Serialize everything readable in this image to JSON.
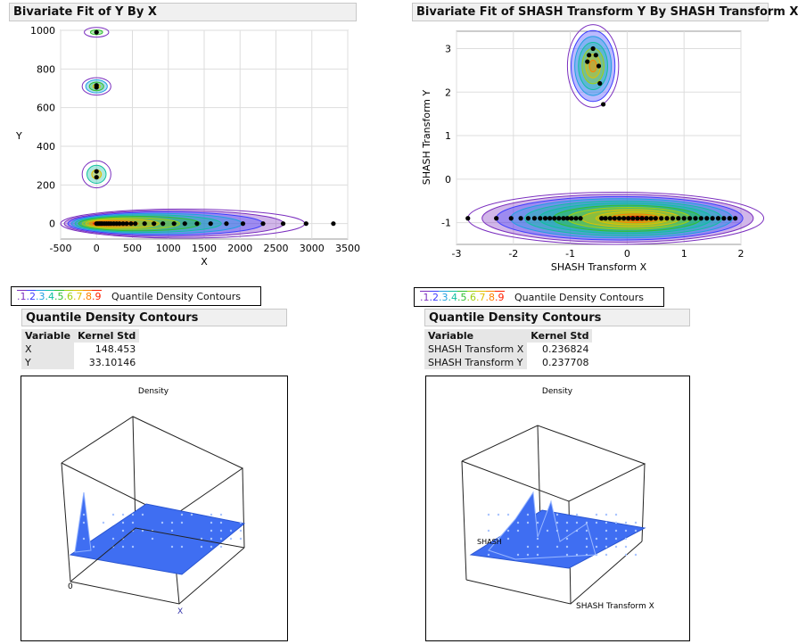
{
  "left": {
    "title": "Bivariate Fit of Y By X",
    "legend_levels": [
      ".1",
      ".2",
      ".3",
      ".4",
      ".5",
      ".6",
      ".7",
      ".8",
      ".9"
    ],
    "legend_label": "Quantile Density Contours",
    "table_title": "Quantile Density Contours",
    "table_headers": [
      "Variable",
      "Kernel Std"
    ],
    "table_rows": [
      [
        "X",
        "148.453"
      ],
      [
        "Y",
        "33.10146"
      ]
    ],
    "surface": {
      "title": "Density",
      "zero_label": "0",
      "x_label": "X"
    }
  },
  "right": {
    "title": "Bivariate Fit of SHASH Transform Y By SHASH Transform X",
    "legend_levels": [
      ".1",
      ".2",
      ".3",
      ".4",
      ".5",
      ".6",
      ".7",
      ".8",
      ".9"
    ],
    "legend_label": "Quantile Density Contours",
    "table_title": "Quantile Density Contours",
    "table_headers": [
      "Variable",
      "Kernel Std"
    ],
    "table_rows": [
      [
        "SHASH Transform X",
        "0.236824"
      ],
      [
        "SHASH Transform Y",
        "0.237708"
      ]
    ],
    "surface": {
      "title": "Density",
      "y_label": "SHASH",
      "x_label": "SHASH Transform X"
    }
  },
  "legend_colors": [
    "#7b2fbf",
    "#3d3dff",
    "#1fa0e0",
    "#10c0a0",
    "#30c030",
    "#a0d010",
    "#e0c000",
    "#ff8000",
    "#ff2000"
  ],
  "chart_data": [
    {
      "type": "scatter",
      "xlabel": "X",
      "ylabel": "Y",
      "xlim": [
        -500,
        3500
      ],
      "ylim": [
        -80,
        1000
      ],
      "xticks": [
        "-500",
        "0",
        "500",
        "1000",
        "1500",
        "2000",
        "2500",
        "3000",
        "3500"
      ],
      "yticks": [
        "0",
        "200",
        "400",
        "600",
        "800",
        "1000"
      ],
      "grid": true,
      "points": [
        [
          0,
          990
        ],
        [
          0,
          715
        ],
        [
          0,
          705
        ],
        [
          0,
          270
        ],
        [
          0,
          240
        ],
        [
          0,
          0
        ],
        [
          20,
          0
        ],
        [
          40,
          0
        ],
        [
          60,
          0
        ],
        [
          80,
          0
        ],
        [
          110,
          0
        ],
        [
          140,
          0
        ],
        [
          170,
          0
        ],
        [
          200,
          0
        ],
        [
          240,
          0
        ],
        [
          280,
          0
        ],
        [
          320,
          0
        ],
        [
          370,
          0
        ],
        [
          420,
          0
        ],
        [
          480,
          0
        ],
        [
          540,
          0
        ],
        [
          670,
          0
        ],
        [
          800,
          0
        ],
        [
          925,
          0
        ],
        [
          1080,
          0
        ],
        [
          1230,
          0
        ],
        [
          1400,
          0
        ],
        [
          1590,
          0
        ],
        [
          1810,
          0
        ],
        [
          2040,
          0
        ],
        [
          2320,
          0
        ],
        [
          2600,
          0
        ],
        [
          2920,
          0
        ],
        [
          3300,
          0
        ]
      ]
    },
    {
      "type": "scatter",
      "xlabel": "SHASH Transform X",
      "ylabel": "SHASH Transform Y",
      "xlim": [
        -3,
        2
      ],
      "ylim": [
        -1.5,
        3.4
      ],
      "xticks": [
        "-3",
        "-2",
        "-1",
        "0",
        "1",
        "2"
      ],
      "yticks": [
        "-1",
        "0",
        "1",
        "2",
        "3"
      ],
      "grid": true,
      "points": [
        [
          -0.6,
          3.0
        ],
        [
          -0.67,
          2.85
        ],
        [
          -0.55,
          2.85
        ],
        [
          -0.7,
          2.7
        ],
        [
          -0.5,
          2.6
        ],
        [
          -0.48,
          2.2
        ],
        [
          -0.42,
          1.72
        ],
        [
          -2.8,
          -0.9
        ],
        [
          -2.3,
          -0.9
        ],
        [
          -2.04,
          -0.9
        ],
        [
          -1.87,
          -0.9
        ],
        [
          -1.74,
          -0.9
        ],
        [
          -1.63,
          -0.9
        ],
        [
          -1.53,
          -0.9
        ],
        [
          -1.44,
          -0.9
        ],
        [
          -1.36,
          -0.9
        ],
        [
          -1.28,
          -0.9
        ],
        [
          -1.2,
          -0.9
        ],
        [
          -1.12,
          -0.9
        ],
        [
          -1.05,
          -0.9
        ],
        [
          -0.98,
          -0.9
        ],
        [
          -0.9,
          -0.9
        ],
        [
          -0.82,
          -0.9
        ],
        [
          -0.45,
          -0.9
        ],
        [
          -0.38,
          -0.9
        ],
        [
          -0.3,
          -0.9
        ],
        [
          -0.22,
          -0.9
        ],
        [
          -0.14,
          -0.9
        ],
        [
          -0.06,
          -0.9
        ],
        [
          0.02,
          -0.9
        ],
        [
          0.1,
          -0.9
        ],
        [
          0.18,
          -0.9
        ],
        [
          0.26,
          -0.9
        ],
        [
          0.34,
          -0.9
        ],
        [
          0.42,
          -0.9
        ],
        [
          0.5,
          -0.9
        ],
        [
          0.6,
          -0.9
        ],
        [
          0.7,
          -0.9
        ],
        [
          0.8,
          -0.9
        ],
        [
          0.9,
          -0.9
        ],
        [
          1.0,
          -0.9
        ],
        [
          1.1,
          -0.9
        ],
        [
          1.2,
          -0.9
        ],
        [
          1.3,
          -0.9
        ],
        [
          1.4,
          -0.9
        ],
        [
          1.5,
          -0.9
        ],
        [
          1.6,
          -0.9
        ],
        [
          1.7,
          -0.9
        ],
        [
          1.8,
          -0.9
        ],
        [
          1.9,
          -0.9
        ]
      ]
    }
  ]
}
